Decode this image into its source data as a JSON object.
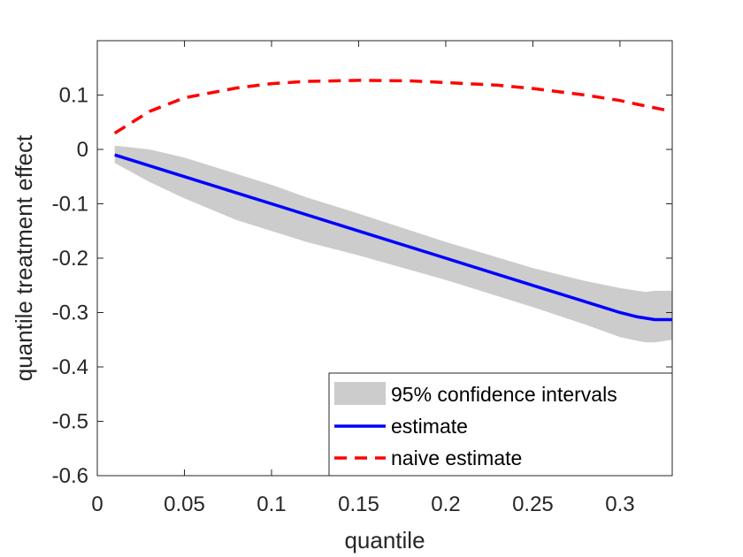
{
  "chart_data": {
    "type": "line",
    "title": "",
    "xlabel": "quantile",
    "ylabel": "quantile treatment effect",
    "xlim": [
      0,
      0.33
    ],
    "ylim": [
      -0.6,
      0.2
    ],
    "xticks": [
      0,
      0.05,
      0.1,
      0.15,
      0.2,
      0.25,
      0.3
    ],
    "xtick_labels": [
      "0",
      "0.05",
      "0.1",
      "0.15",
      "0.2",
      "0.25",
      "0.3"
    ],
    "yticks": [
      0.1,
      0,
      -0.1,
      -0.2,
      -0.3,
      -0.4,
      -0.5,
      -0.6
    ],
    "ytick_labels": [
      "0.1",
      "0",
      "-0.1",
      "-0.2",
      "-0.3",
      "-0.4",
      "-0.5",
      "-0.6"
    ],
    "grid": false,
    "legend_position": "bottom-right",
    "colors": {
      "band": "#cccccc",
      "estimate": "#0000ff",
      "naive": "#ff0000",
      "axis": "#262626"
    },
    "series": [
      {
        "name": "95% confidence intervals",
        "kind": "band",
        "x": [
          0.01,
          0.03,
          0.05,
          0.08,
          0.1,
          0.12,
          0.15,
          0.2,
          0.25,
          0.28,
          0.3,
          0.31,
          0.315,
          0.32,
          0.33
        ],
        "upper": [
          0.007,
          0.0,
          -0.015,
          -0.045,
          -0.065,
          -0.088,
          -0.118,
          -0.17,
          -0.218,
          -0.242,
          -0.255,
          -0.26,
          -0.262,
          -0.26,
          -0.26
        ],
        "lower": [
          -0.025,
          -0.06,
          -0.09,
          -0.13,
          -0.15,
          -0.17,
          -0.195,
          -0.24,
          -0.29,
          -0.322,
          -0.345,
          -0.352,
          -0.355,
          -0.355,
          -0.35
        ]
      },
      {
        "name": "estimate",
        "kind": "line",
        "x": [
          0.01,
          0.05,
          0.1,
          0.15,
          0.2,
          0.25,
          0.28,
          0.3,
          0.31,
          0.32,
          0.33
        ],
        "y": [
          -0.01,
          -0.05,
          -0.1,
          -0.15,
          -0.2,
          -0.25,
          -0.28,
          -0.3,
          -0.308,
          -0.313,
          -0.313
        ]
      },
      {
        "name": "naive estimate",
        "kind": "dashed",
        "x": [
          0.01,
          0.03,
          0.05,
          0.08,
          0.1,
          0.12,
          0.15,
          0.18,
          0.2,
          0.23,
          0.25,
          0.28,
          0.3,
          0.31,
          0.33
        ],
        "y": [
          0.03,
          0.07,
          0.095,
          0.113,
          0.121,
          0.125,
          0.127,
          0.126,
          0.123,
          0.118,
          0.112,
          0.1,
          0.09,
          0.083,
          0.07
        ]
      }
    ]
  }
}
